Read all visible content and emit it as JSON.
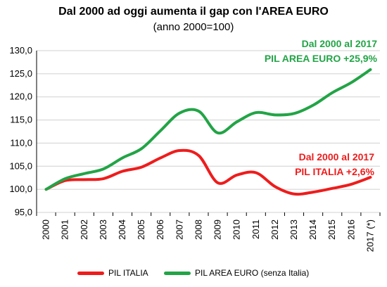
{
  "title": "Dal 2000 ad oggi aumenta il gap con l'AREA EURO",
  "subtitle": "(anno 2000=100)",
  "annotations": {
    "euro": [
      "Dal 2000 al 2017",
      "PIL AREA EURO +25,9%"
    ],
    "italia": [
      "Dal 2000 al 2017",
      "PIL ITALIA +2,6%"
    ]
  },
  "colors": {
    "italia": "#ee1c1c",
    "euro": "#22a446",
    "grid": "#d0d0d0"
  },
  "chart_data": {
    "type": "line",
    "title": "Dal 2000 ad oggi aumenta il gap con l'AREA EURO",
    "subtitle": "(anno 2000=100)",
    "x": [
      "2000",
      "2001",
      "2002",
      "2003",
      "2004",
      "2005",
      "2006",
      "2007",
      "2008",
      "2009",
      "2010",
      "2011",
      "2012",
      "2013",
      "2014",
      "2015",
      "2016",
      "2017 (*)"
    ],
    "ylim": [
      95,
      130
    ],
    "yticks": [
      "95,0",
      "100,0",
      "105,0",
      "110,0",
      "115,0",
      "120,0",
      "125,0",
      "130,0"
    ],
    "ytick_values": [
      95,
      100,
      105,
      110,
      115,
      120,
      125,
      130
    ],
    "grid": true,
    "legend": "bottom",
    "series": [
      {
        "name": "PIL ITALIA",
        "color": "#ee1c1c",
        "values": [
          100,
          101.9,
          102.1,
          102.3,
          103.9,
          104.8,
          106.8,
          108.4,
          107.3,
          101.4,
          103.1,
          103.6,
          100.6,
          99.0,
          99.4,
          100.2,
          101.1,
          102.6
        ]
      },
      {
        "name": "PIL AREA EURO (senza Italia)",
        "color": "#22a446",
        "values": [
          100,
          102.3,
          103.4,
          104.4,
          106.8,
          108.8,
          112.7,
          116.5,
          116.9,
          112.2,
          114.6,
          116.6,
          116.1,
          116.4,
          118.2,
          120.9,
          123.1,
          125.9
        ]
      }
    ]
  }
}
